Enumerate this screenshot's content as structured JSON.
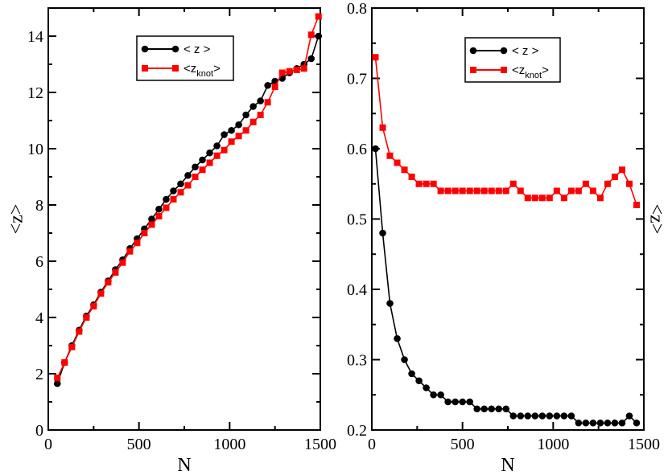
{
  "colors": {
    "series_z": "#000000",
    "series_zknot": "#ff0000"
  },
  "chart_data": [
    {
      "type": "line",
      "panel": "left",
      "xlabel": "N",
      "ylabel": "<z>",
      "xlim": [
        0,
        1500
      ],
      "ylim": [
        0,
        15
      ],
      "xticks": [
        0,
        500,
        1000,
        1500
      ],
      "yticks": [
        0,
        2,
        4,
        6,
        8,
        10,
        12,
        14
      ],
      "xtick_labels": [
        "0",
        "500",
        "1000",
        "1500"
      ],
      "ytick_labels": [
        "0",
        "2",
        "4",
        "6",
        "8",
        "10",
        "12",
        "14"
      ],
      "legend_position": "top-center",
      "series": [
        {
          "name": "< z >",
          "name_main": "< z >",
          "name_sub": "",
          "name_end": "",
          "color": "#000000",
          "marker": "circle",
          "x": [
            50,
            90,
            130,
            170,
            210,
            250,
            290,
            330,
            370,
            410,
            450,
            490,
            530,
            570,
            610,
            650,
            690,
            730,
            770,
            810,
            850,
            890,
            930,
            970,
            1010,
            1050,
            1090,
            1130,
            1170,
            1210,
            1250,
            1290,
            1330,
            1370,
            1410,
            1450,
            1490
          ],
          "y": [
            1.65,
            2.4,
            3.0,
            3.55,
            4.05,
            4.45,
            4.9,
            5.3,
            5.7,
            6.05,
            6.45,
            6.8,
            7.15,
            7.5,
            7.85,
            8.2,
            8.5,
            8.75,
            9.05,
            9.35,
            9.6,
            9.85,
            10.1,
            10.5,
            10.65,
            10.85,
            11.2,
            11.5,
            11.7,
            12.25,
            12.4,
            12.5,
            12.7,
            12.85,
            13.0,
            13.2,
            14.0
          ]
        },
        {
          "name": "<z_knot>",
          "name_main": "<z",
          "name_sub": "knot",
          "name_end": ">",
          "color": "#ff0000",
          "marker": "square",
          "x": [
            50,
            90,
            130,
            170,
            210,
            250,
            290,
            330,
            370,
            410,
            450,
            490,
            530,
            570,
            610,
            650,
            690,
            730,
            770,
            810,
            850,
            890,
            930,
            970,
            1010,
            1050,
            1090,
            1130,
            1170,
            1210,
            1250,
            1290,
            1330,
            1370,
            1410,
            1450,
            1490
          ],
          "y": [
            1.85,
            2.4,
            2.95,
            3.5,
            4.0,
            4.4,
            4.85,
            5.25,
            5.6,
            5.95,
            6.35,
            6.65,
            7.0,
            7.3,
            7.6,
            7.9,
            8.2,
            8.45,
            8.7,
            9.0,
            9.25,
            9.5,
            9.75,
            9.95,
            10.25,
            10.45,
            10.65,
            10.95,
            11.2,
            11.65,
            12.2,
            12.7,
            12.75,
            12.8,
            12.85,
            14.05,
            14.7
          ]
        }
      ]
    },
    {
      "type": "line",
      "panel": "right",
      "xlabel": "N",
      "ylabel": "<z>",
      "xlim": [
        0,
        1500
      ],
      "ylim": [
        0.2,
        0.8
      ],
      "xticks": [
        0,
        500,
        1000,
        1500
      ],
      "yticks": [
        0.2,
        0.3,
        0.4,
        0.5,
        0.6,
        0.7,
        0.8
      ],
      "xtick_labels": [
        "0",
        "500",
        "1000",
        "1500"
      ],
      "ytick_labels": [
        "0.2",
        "0.3",
        "0.4",
        "0.5",
        "0.6",
        "0.7",
        "0.8"
      ],
      "legend_position": "top-right",
      "series": [
        {
          "name": "< z >",
          "name_main": "< z >",
          "name_sub": "",
          "name_end": "",
          "color": "#000000",
          "marker": "circle",
          "x": [
            20,
            60,
            100,
            140,
            180,
            220,
            260,
            300,
            340,
            380,
            420,
            460,
            500,
            540,
            580,
            620,
            660,
            700,
            740,
            780,
            820,
            860,
            900,
            940,
            980,
            1020,
            1060,
            1100,
            1140,
            1180,
            1220,
            1260,
            1300,
            1340,
            1380,
            1420,
            1460
          ],
          "y": [
            0.6,
            0.48,
            0.38,
            0.33,
            0.3,
            0.28,
            0.27,
            0.26,
            0.25,
            0.25,
            0.24,
            0.24,
            0.24,
            0.24,
            0.23,
            0.23,
            0.23,
            0.23,
            0.23,
            0.22,
            0.22,
            0.22,
            0.22,
            0.22,
            0.22,
            0.22,
            0.22,
            0.22,
            0.21,
            0.21,
            0.21,
            0.21,
            0.21,
            0.21,
            0.21,
            0.22,
            0.21
          ]
        },
        {
          "name": "<z_knot>",
          "name_main": "<z",
          "name_sub": "knot",
          "name_end": ">",
          "color": "#ff0000",
          "marker": "square",
          "x": [
            20,
            60,
            100,
            140,
            180,
            220,
            260,
            300,
            340,
            380,
            420,
            460,
            500,
            540,
            580,
            620,
            660,
            700,
            740,
            780,
            820,
            860,
            900,
            940,
            980,
            1020,
            1060,
            1100,
            1140,
            1180,
            1220,
            1260,
            1300,
            1340,
            1380,
            1420,
            1460
          ],
          "y": [
            0.73,
            0.63,
            0.59,
            0.58,
            0.57,
            0.56,
            0.55,
            0.55,
            0.55,
            0.54,
            0.54,
            0.54,
            0.54,
            0.54,
            0.54,
            0.54,
            0.54,
            0.54,
            0.54,
            0.55,
            0.54,
            0.53,
            0.53,
            0.53,
            0.53,
            0.54,
            0.53,
            0.54,
            0.54,
            0.55,
            0.54,
            0.53,
            0.55,
            0.56,
            0.57,
            0.55,
            0.52
          ]
        }
      ]
    }
  ]
}
